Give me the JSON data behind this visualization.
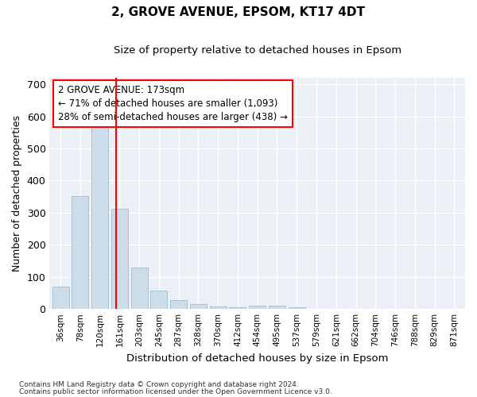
{
  "title": "2, GROVE AVENUE, EPSOM, KT17 4DT",
  "subtitle": "Size of property relative to detached houses in Epsom",
  "xlabel": "Distribution of detached houses by size in Epsom",
  "ylabel": "Number of detached properties",
  "bar_color": "#ccdce8",
  "bar_edgecolor": "#a0bcd0",
  "background_color": "#eaf0f6",
  "grid_color": "#ffffff",
  "categories": [
    "36sqm",
    "78sqm",
    "120sqm",
    "161sqm",
    "203sqm",
    "245sqm",
    "287sqm",
    "328sqm",
    "370sqm",
    "412sqm",
    "454sqm",
    "495sqm",
    "537sqm",
    "579sqm",
    "621sqm",
    "662sqm",
    "704sqm",
    "746sqm",
    "788sqm",
    "829sqm",
    "871sqm"
  ],
  "values": [
    70,
    352,
    570,
    312,
    130,
    57,
    27,
    15,
    8,
    5,
    10,
    10,
    5,
    0,
    0,
    0,
    0,
    0,
    0,
    0,
    0
  ],
  "annotation_text": "2 GROVE AVENUE: 173sqm\n← 71% of detached houses are smaller (1,093)\n28% of semi-detached houses are larger (438) →",
  "ylim": [
    0,
    720
  ],
  "yticks": [
    0,
    100,
    200,
    300,
    400,
    500,
    600,
    700
  ],
  "footnote1": "Contains HM Land Registry data © Crown copyright and database right 2024.",
  "footnote2": "Contains public sector information licensed under the Open Government Licence v3.0."
}
